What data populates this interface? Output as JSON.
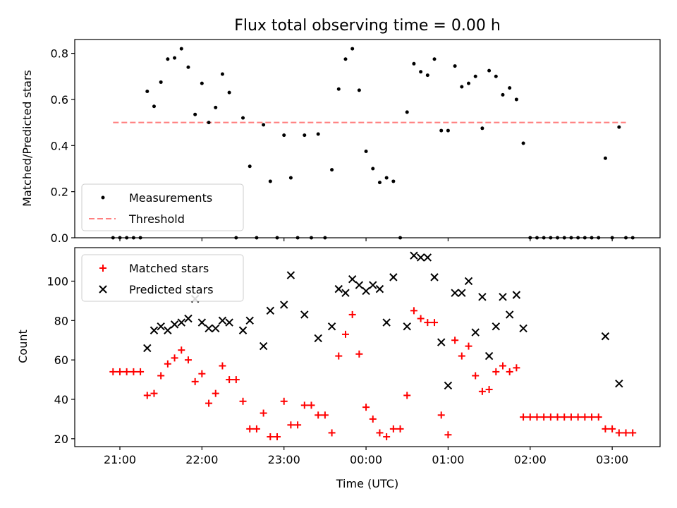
{
  "figure": {
    "title": "Flux total observing time = 0.00 h",
    "xlabel": "Time (UTC)",
    "top_ylabel": "Matched/Predicted stars",
    "bottom_ylabel": "Count"
  },
  "colors": {
    "measurements": "#000000",
    "threshold": "#ff7f7f",
    "matched": "#ff0000",
    "predicted": "#000000",
    "axes": "#000000"
  },
  "chart_data": [
    {
      "type": "scatter",
      "x_axis": "time of night (UTC)",
      "xlim": [
        "20:27",
        "03:35"
      ],
      "ylim": [
        0,
        0.86
      ],
      "x_ticks": [
        "21:00",
        "22:00",
        "23:00",
        "00:00",
        "01:00",
        "02:00",
        "03:00"
      ],
      "y_ticks": [
        "0.0",
        "0.2",
        "0.4",
        "0.6",
        "0.8"
      ],
      "legend": {
        "placement": "lower-left",
        "entries": [
          "Measurements",
          "Threshold"
        ]
      },
      "threshold": {
        "name": "Threshold",
        "value": 0.5,
        "x_range": [
          "20:55",
          "03:10"
        ]
      },
      "series": [
        {
          "name": "Measurements",
          "points": [
            [
              "20:55",
              0.0
            ],
            [
              "21:00",
              0.0
            ],
            [
              "21:05",
              0.0
            ],
            [
              "21:10",
              0.0
            ],
            [
              "21:15",
              0.0
            ],
            [
              "21:20",
              0.635
            ],
            [
              "21:25",
              0.57
            ],
            [
              "21:30",
              0.675
            ],
            [
              "21:35",
              0.775
            ],
            [
              "21:40",
              0.78
            ],
            [
              "21:45",
              0.82
            ],
            [
              "21:50",
              0.74
            ],
            [
              "21:55",
              0.535
            ],
            [
              "22:00",
              0.67
            ],
            [
              "22:05",
              0.5
            ],
            [
              "22:10",
              0.565
            ],
            [
              "22:15",
              0.71
            ],
            [
              "22:20",
              0.63
            ],
            [
              "22:25",
              0.0
            ],
            [
              "22:30",
              0.52
            ],
            [
              "22:35",
              0.31
            ],
            [
              "22:40",
              0.0
            ],
            [
              "22:45",
              0.49
            ],
            [
              "22:50",
              0.245
            ],
            [
              "22:55",
              0.0
            ],
            [
              "23:00",
              0.445
            ],
            [
              "23:05",
              0.26
            ],
            [
              "23:10",
              0.0
            ],
            [
              "23:15",
              0.445
            ],
            [
              "23:20",
              0.0
            ],
            [
              "23:25",
              0.45
            ],
            [
              "23:30",
              0.0
            ],
            [
              "23:35",
              0.295
            ],
            [
              "23:40",
              0.645
            ],
            [
              "23:45",
              0.775
            ],
            [
              "23:50",
              0.82
            ],
            [
              "23:55",
              0.64
            ],
            [
              "00:00",
              0.375
            ],
            [
              "00:05",
              0.3
            ],
            [
              "00:10",
              0.24
            ],
            [
              "00:15",
              0.26
            ],
            [
              "00:20",
              0.245
            ],
            [
              "00:25",
              0.0
            ],
            [
              "00:30",
              0.545
            ],
            [
              "00:35",
              0.755
            ],
            [
              "00:40",
              0.72
            ],
            [
              "00:45",
              0.705
            ],
            [
              "00:50",
              0.775
            ],
            [
              "00:55",
              0.465
            ],
            [
              "01:00",
              0.465
            ],
            [
              "01:05",
              0.745
            ],
            [
              "01:10",
              0.655
            ],
            [
              "01:15",
              0.67
            ],
            [
              "01:20",
              0.7
            ],
            [
              "01:25",
              0.475
            ],
            [
              "01:30",
              0.725
            ],
            [
              "01:35",
              0.7
            ],
            [
              "01:40",
              0.62
            ],
            [
              "01:45",
              0.65
            ],
            [
              "01:50",
              0.6
            ],
            [
              "01:55",
              0.41
            ],
            [
              "02:00",
              0.0
            ],
            [
              "02:05",
              0.0
            ],
            [
              "02:10",
              0.0
            ],
            [
              "02:15",
              0.0
            ],
            [
              "02:20",
              0.0
            ],
            [
              "02:25",
              0.0
            ],
            [
              "02:30",
              0.0
            ],
            [
              "02:35",
              0.0
            ],
            [
              "02:40",
              0.0
            ],
            [
              "02:45",
              0.0
            ],
            [
              "02:50",
              0.0
            ],
            [
              "02:55",
              0.345
            ],
            [
              "03:00",
              0.0
            ],
            [
              "03:05",
              0.48
            ],
            [
              "03:10",
              0.0
            ],
            [
              "03:15",
              0.0
            ]
          ]
        }
      ]
    },
    {
      "type": "scatter",
      "x_axis": "time of night (UTC)",
      "xlim": [
        "20:27",
        "03:35"
      ],
      "ylim": [
        16,
        117
      ],
      "x_ticks": [
        "21:00",
        "22:00",
        "23:00",
        "00:00",
        "01:00",
        "02:00",
        "03:00"
      ],
      "y_ticks": [
        "20",
        "40",
        "60",
        "80",
        "100"
      ],
      "legend": {
        "placement": "upper-left",
        "entries": [
          "Matched stars",
          "Predicted stars"
        ]
      },
      "series": [
        {
          "name": "Matched stars",
          "points": [
            [
              "20:55",
              54
            ],
            [
              "21:00",
              54
            ],
            [
              "21:05",
              54
            ],
            [
              "21:10",
              54
            ],
            [
              "21:15",
              54
            ],
            [
              "21:20",
              42
            ],
            [
              "21:25",
              43
            ],
            [
              "21:30",
              52
            ],
            [
              "21:35",
              58
            ],
            [
              "21:40",
              61
            ],
            [
              "21:45",
              65
            ],
            [
              "21:50",
              60
            ],
            [
              "21:55",
              49
            ],
            [
              "22:00",
              53
            ],
            [
              "22:05",
              38
            ],
            [
              "22:10",
              43
            ],
            [
              "22:15",
              57
            ],
            [
              "22:20",
              50
            ],
            [
              "22:25",
              50
            ],
            [
              "22:30",
              39
            ],
            [
              "22:35",
              25
            ],
            [
              "22:40",
              25
            ],
            [
              "22:45",
              33
            ],
            [
              "22:50",
              21
            ],
            [
              "22:55",
              21
            ],
            [
              "23:00",
              39
            ],
            [
              "23:05",
              27
            ],
            [
              "23:10",
              27
            ],
            [
              "23:15",
              37
            ],
            [
              "23:20",
              37
            ],
            [
              "23:25",
              32
            ],
            [
              "23:30",
              32
            ],
            [
              "23:35",
              23
            ],
            [
              "23:40",
              62
            ],
            [
              "23:45",
              73
            ],
            [
              "23:50",
              83
            ],
            [
              "23:55",
              63
            ],
            [
              "00:00",
              36
            ],
            [
              "00:05",
              30
            ],
            [
              "00:10",
              23
            ],
            [
              "00:15",
              21
            ],
            [
              "00:20",
              25
            ],
            [
              "00:25",
              25
            ],
            [
              "00:30",
              42
            ],
            [
              "00:35",
              85
            ],
            [
              "00:40",
              81
            ],
            [
              "00:45",
              79
            ],
            [
              "00:50",
              79
            ],
            [
              "00:55",
              32
            ],
            [
              "01:00",
              22
            ],
            [
              "01:05",
              70
            ],
            [
              "01:10",
              62
            ],
            [
              "01:15",
              67
            ],
            [
              "01:20",
              52
            ],
            [
              "01:25",
              44
            ],
            [
              "01:30",
              45
            ],
            [
              "01:35",
              54
            ],
            [
              "01:40",
              57
            ],
            [
              "01:45",
              54
            ],
            [
              "01:50",
              56
            ],
            [
              "01:55",
              31
            ],
            [
              "02:00",
              31
            ],
            [
              "02:05",
              31
            ],
            [
              "02:10",
              31
            ],
            [
              "02:15",
              31
            ],
            [
              "02:20",
              31
            ],
            [
              "02:25",
              31
            ],
            [
              "02:30",
              31
            ],
            [
              "02:35",
              31
            ],
            [
              "02:40",
              31
            ],
            [
              "02:45",
              31
            ],
            [
              "02:50",
              31
            ],
            [
              "02:55",
              25
            ],
            [
              "03:00",
              25
            ],
            [
              "03:05",
              23
            ],
            [
              "03:10",
              23
            ],
            [
              "03:15",
              23
            ]
          ]
        },
        {
          "name": "Predicted stars",
          "points": [
            [
              "21:20",
              66
            ],
            [
              "21:25",
              75
            ],
            [
              "21:30",
              77
            ],
            [
              "21:35",
              75
            ],
            [
              "21:40",
              78
            ],
            [
              "21:45",
              79
            ],
            [
              "21:50",
              81
            ],
            [
              "21:55",
              91
            ],
            [
              "22:00",
              79
            ],
            [
              "22:05",
              76
            ],
            [
              "22:10",
              76
            ],
            [
              "22:15",
              80
            ],
            [
              "22:20",
              79
            ],
            [
              "22:30",
              75
            ],
            [
              "22:35",
              80
            ],
            [
              "22:45",
              67
            ],
            [
              "22:50",
              85
            ],
            [
              "23:00",
              88
            ],
            [
              "23:05",
              103
            ],
            [
              "23:15",
              83
            ],
            [
              "23:25",
              71
            ],
            [
              "23:35",
              77
            ],
            [
              "23:40",
              96
            ],
            [
              "23:45",
              94
            ],
            [
              "23:50",
              101
            ],
            [
              "23:55",
              98
            ],
            [
              "00:00",
              95
            ],
            [
              "00:05",
              98
            ],
            [
              "00:10",
              96
            ],
            [
              "00:15",
              79
            ],
            [
              "00:20",
              102
            ],
            [
              "00:30",
              77
            ],
            [
              "00:35",
              113
            ],
            [
              "00:40",
              112
            ],
            [
              "00:45",
              112
            ],
            [
              "00:50",
              102
            ],
            [
              "00:55",
              69
            ],
            [
              "01:00",
              47
            ],
            [
              "01:05",
              94
            ],
            [
              "01:10",
              94
            ],
            [
              "01:15",
              100
            ],
            [
              "01:20",
              74
            ],
            [
              "01:25",
              92
            ],
            [
              "01:30",
              62
            ],
            [
              "01:35",
              77
            ],
            [
              "01:40",
              92
            ],
            [
              "01:45",
              83
            ],
            [
              "01:50",
              93
            ],
            [
              "01:55",
              76
            ],
            [
              "02:55",
              72
            ],
            [
              "03:05",
              48
            ]
          ]
        }
      ]
    }
  ]
}
